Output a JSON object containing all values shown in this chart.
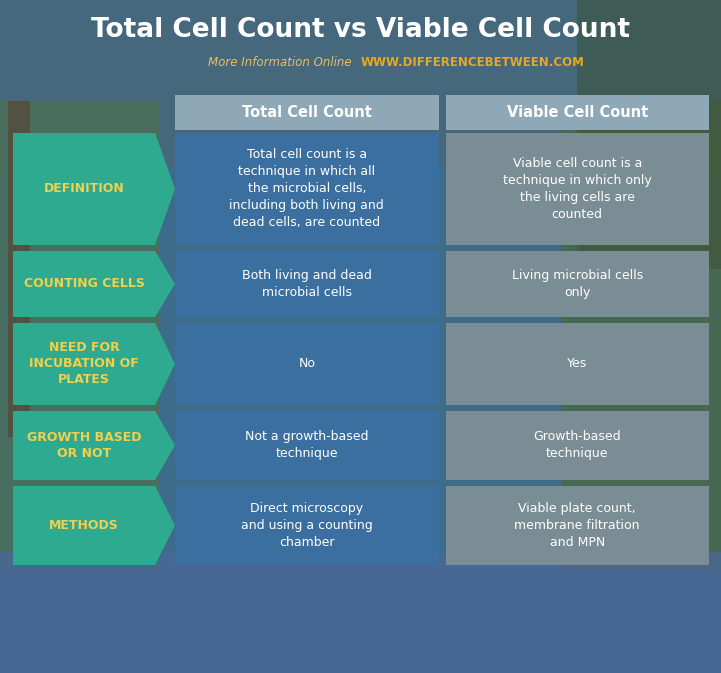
{
  "title": "Total Cell Count vs Viable Cell Count",
  "subtitle_normal": "More Information Online ",
  "subtitle_url": "WWW.DIFFERENCEBETWEEN.COM",
  "subtitle_normal_color": "#e8c060",
  "subtitle_url_color": "#e8a820",
  "col1_header": "Total Cell Count",
  "col2_header": "Viable Cell Count",
  "header_bg": "#8fa8b8",
  "header_text_color": "#ffffff",
  "row_label_bg": "#2eaa90",
  "row_label_text_color": "#f0d050",
  "col1_bg": "#3a6fa0",
  "col1_text_color": "#ffffff",
  "col2_bg": "#7a8c94",
  "col2_text_color": "#ffffff",
  "title_color": "#ffffff",
  "overall_bg": "#3a6890",
  "title_bg_color": "#3a6890",
  "gap_color": "#5a8aaa",
  "rows": [
    {
      "label": "DEFINITION",
      "col1": "Total cell count is a\ntechnique in which all\nthe microbial cells,\nincluding both living and\ndead cells, are counted",
      "col2": "Viable cell count is a\ntechnique in which only\nthe living cells are\ncounted"
    },
    {
      "label": "COUNTING CELLS",
      "col1": "Both living and dead\nmicrobial cells",
      "col2": "Living microbial cells\nonly"
    },
    {
      "label": "NEED FOR\nINCUBATION OF\nPLATES",
      "col1": "No",
      "col2": "Yes"
    },
    {
      "label": "GROWTH BASED\nOR NOT",
      "col1": "Not a growth-based\ntechnique",
      "col2": "Growth-based\ntechnique"
    },
    {
      "label": "METHODS",
      "col1": "Direct microscopy\nand using a counting\nchamber",
      "col2": "Viable plate count,\nmembrane filtration\nand MPN"
    }
  ],
  "fig_w": 7.21,
  "fig_h": 6.73,
  "dpi": 100
}
